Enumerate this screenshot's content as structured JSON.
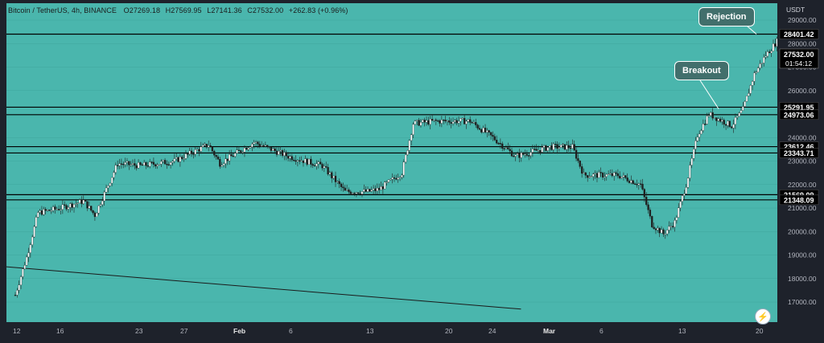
{
  "legend": {
    "symbol": "Bitcoin / TetherUS, 4h, BINANCE",
    "open": "O27269.18",
    "high": "H27569.95",
    "low": "L27141.36",
    "close": "C27532.00",
    "change": "+262.83 (+0.96%)"
  },
  "callouts": {
    "rejection": "Rejection",
    "breakout": "Breakout"
  },
  "countdown": "01:54:12",
  "colors": {
    "background": "#4ab6ad",
    "up": "#ffffff",
    "down": "#1d1d1d",
    "grid": "#3fa59d",
    "axis_bg": "#1e222b",
    "label_bg": "#000000"
  },
  "chart_data": {
    "type": "candlestick",
    "timeframe": "4h",
    "exchange": "BINANCE",
    "ylabel": "USDT",
    "ylim": [
      16000,
      30000
    ],
    "y_ticks": [
      17000,
      18000,
      19000,
      20000,
      21000,
      22000,
      23000,
      24000,
      25000,
      26000,
      27000,
      28000,
      29000
    ],
    "x_ticks": [
      "12",
      "16",
      "23",
      "27",
      "Feb",
      "6",
      "13",
      "20",
      "24",
      "Mar",
      "6",
      "13",
      "20"
    ],
    "horizontal_levels": [
      28401.42,
      25291.95,
      24973.06,
      23612.46,
      23343.71,
      21569.09,
      21348.09
    ],
    "last_price": 27532.0,
    "price_path": [
      [
        "2023-01-12",
        17300
      ],
      [
        "2023-01-13",
        18900
      ],
      [
        "2023-01-14",
        20800
      ],
      [
        "2023-01-16",
        21000
      ],
      [
        "2023-01-18",
        21300
      ],
      [
        "2023-01-19",
        20700
      ],
      [
        "2023-01-21",
        22900
      ],
      [
        "2023-01-23",
        22800
      ],
      [
        "2023-01-26",
        23000
      ],
      [
        "2023-01-29",
        23700
      ],
      [
        "2023-01-30",
        22900
      ],
      [
        "2023-02-02",
        23800
      ],
      [
        "2023-02-05",
        23200
      ],
      [
        "2023-02-08",
        22800
      ],
      [
        "2023-02-10",
        21700
      ],
      [
        "2023-02-12",
        21700
      ],
      [
        "2023-02-13",
        21800
      ],
      [
        "2023-02-15",
        22500
      ],
      [
        "2023-02-16",
        24600
      ],
      [
        "2023-02-18",
        24700
      ],
      [
        "2023-02-21",
        24700
      ],
      [
        "2023-02-23",
        24000
      ],
      [
        "2023-02-25",
        23200
      ],
      [
        "2023-02-28",
        23600
      ],
      [
        "2023-03-02",
        23600
      ],
      [
        "2023-03-03",
        22400
      ],
      [
        "2023-03-06",
        22400
      ],
      [
        "2023-03-08",
        22000
      ],
      [
        "2023-03-09",
        20300
      ],
      [
        "2023-03-10",
        19900
      ],
      [
        "2023-03-11",
        20400
      ],
      [
        "2023-03-12",
        22000
      ],
      [
        "2023-03-13",
        24100
      ],
      [
        "2023-03-14",
        25000
      ],
      [
        "2023-03-16",
        24500
      ],
      [
        "2023-03-17",
        25200
      ],
      [
        "2023-03-18",
        26700
      ],
      [
        "2023-03-19",
        27500
      ],
      [
        "2023-03-20",
        28100
      ],
      [
        "2023-03-21",
        27500
      ]
    ],
    "trend_line": [
      [
        "2023-01-12",
        18500
      ],
      [
        "2023-02-23",
        16700
      ]
    ]
  }
}
